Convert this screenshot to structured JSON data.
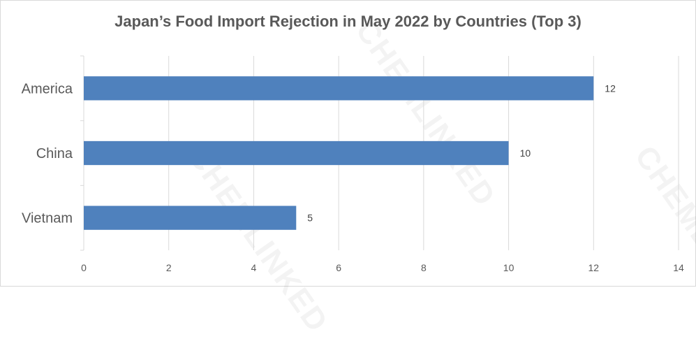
{
  "chart_data": {
    "type": "bar",
    "orientation": "horizontal",
    "title": "Japan’s Food Import Rejection in May 2022 by Countries (Top 3)",
    "categories": [
      "America",
      "China",
      "Vietnam"
    ],
    "values": [
      12,
      10,
      5
    ],
    "xlim": [
      0,
      14
    ],
    "x_ticks": [
      "0",
      "2",
      "4",
      "6",
      "8",
      "10",
      "12",
      "14"
    ],
    "grid": true,
    "data_labels": true,
    "bar_color": "#4f81bd",
    "grid_color": "#d9d9d9",
    "text_color": "#595959"
  },
  "watermark": "CHEMLINKED"
}
